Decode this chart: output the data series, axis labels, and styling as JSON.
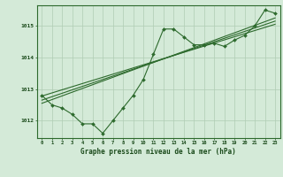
{
  "title": "Graphe pression niveau de la mer (hPa)",
  "x_values": [
    0,
    1,
    2,
    3,
    4,
    5,
    6,
    7,
    8,
    9,
    10,
    11,
    12,
    13,
    14,
    15,
    16,
    17,
    18,
    19,
    20,
    21,
    22,
    23
  ],
  "line1": [
    1012.8,
    1012.5,
    1012.4,
    1012.2,
    1011.9,
    1011.9,
    1011.6,
    1012.0,
    1012.4,
    1012.8,
    1013.3,
    1014.1,
    1014.9,
    1014.9,
    1014.65,
    1014.4,
    1014.4,
    1014.45,
    1014.35,
    1014.55,
    1014.7,
    1015.0,
    1015.5,
    1015.4
  ],
  "line2_x": [
    0,
    23
  ],
  "line2_y": [
    1012.78,
    1015.05
  ],
  "line3_x": [
    0,
    23
  ],
  "line3_y": [
    1012.65,
    1015.15
  ],
  "line4_x": [
    0,
    23
  ],
  "line4_y": [
    1012.55,
    1015.25
  ],
  "ylim": [
    1011.45,
    1015.65
  ],
  "xlim": [
    -0.5,
    23.5
  ],
  "yticks": [
    1012,
    1013,
    1014,
    1015
  ],
  "xticks": [
    0,
    1,
    2,
    3,
    4,
    5,
    6,
    7,
    8,
    9,
    10,
    11,
    12,
    13,
    14,
    15,
    16,
    17,
    18,
    19,
    20,
    21,
    22,
    23
  ],
  "line_color": "#2d6a2d",
  "bg_color": "#d4ead8",
  "grid_color": "#b0ccb4",
  "label_color": "#1a4a1a",
  "title_color": "#1a4a1a"
}
